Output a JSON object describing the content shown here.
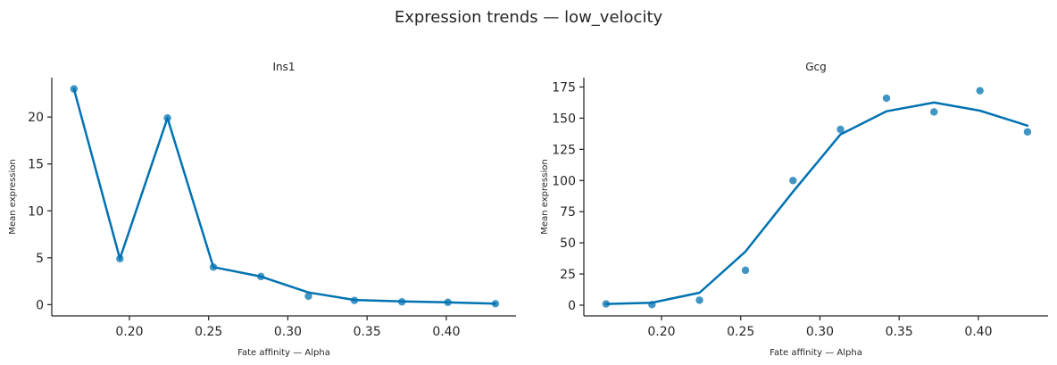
{
  "figure": {
    "suptitle": "Expression trends — low_velocity"
  },
  "colors": {
    "series": "#0072b2",
    "axis": "#262626"
  },
  "chart_data": [
    {
      "type": "line",
      "title": "Ins1",
      "xlabel": "Fate affinity — Alpha",
      "ylabel": "Mean expression",
      "xlim": [
        0.151,
        0.444
      ],
      "ylim": [
        -1.2,
        24.2
      ],
      "xticks": [
        0.2,
        0.25,
        0.3,
        0.35,
        0.4
      ],
      "xtick_labels": [
        "0.20",
        "0.25",
        "0.30",
        "0.35",
        "0.40"
      ],
      "yticks": [
        0,
        5,
        10,
        15,
        20
      ],
      "ytick_labels": [
        "0",
        "5",
        "10",
        "15",
        "20"
      ],
      "grid": false,
      "series": [
        {
          "kind": "scatter",
          "x": [
            0.165,
            0.194,
            0.224,
            0.253,
            0.283,
            0.313,
            0.342,
            0.372,
            0.401,
            0.431
          ],
          "y": [
            23.0,
            4.9,
            19.9,
            4.0,
            3.0,
            0.9,
            0.45,
            0.3,
            0.25,
            0.1
          ]
        },
        {
          "kind": "line",
          "x": [
            0.165,
            0.194,
            0.224,
            0.253,
            0.283,
            0.313,
            0.342,
            0.372,
            0.401,
            0.431
          ],
          "y": [
            23.0,
            4.9,
            19.9,
            4.0,
            3.0,
            1.3,
            0.5,
            0.35,
            0.25,
            0.1
          ]
        }
      ]
    },
    {
      "type": "line",
      "title": "Gcg",
      "xlabel": "Fate affinity — Alpha",
      "ylabel": "Mean expression",
      "xlim": [
        0.151,
        0.444
      ],
      "ylim": [
        -8.6,
        182.5
      ],
      "xticks": [
        0.2,
        0.25,
        0.3,
        0.35,
        0.4
      ],
      "xtick_labels": [
        "0.20",
        "0.25",
        "0.30",
        "0.35",
        "0.40"
      ],
      "yticks": [
        0,
        25,
        50,
        75,
        100,
        125,
        150,
        175
      ],
      "ytick_labels": [
        "0",
        "25",
        "50",
        "75",
        "100",
        "125",
        "150",
        "175"
      ],
      "grid": false,
      "series": [
        {
          "kind": "scatter",
          "x": [
            0.165,
            0.194,
            0.224,
            0.253,
            0.283,
            0.313,
            0.342,
            0.372,
            0.401,
            0.431
          ],
          "y": [
            1.0,
            0.5,
            4.0,
            28.0,
            100.0,
            141.0,
            166.0,
            155.0,
            172.0,
            139.0
          ]
        },
        {
          "kind": "line",
          "x": [
            0.165,
            0.194,
            0.224,
            0.253,
            0.283,
            0.313,
            0.342,
            0.372,
            0.401,
            0.431
          ],
          "y": [
            1.0,
            2.0,
            10.0,
            43.0,
            91.0,
            137.0,
            155.5,
            162.5,
            156.0,
            144.0
          ]
        }
      ]
    }
  ]
}
